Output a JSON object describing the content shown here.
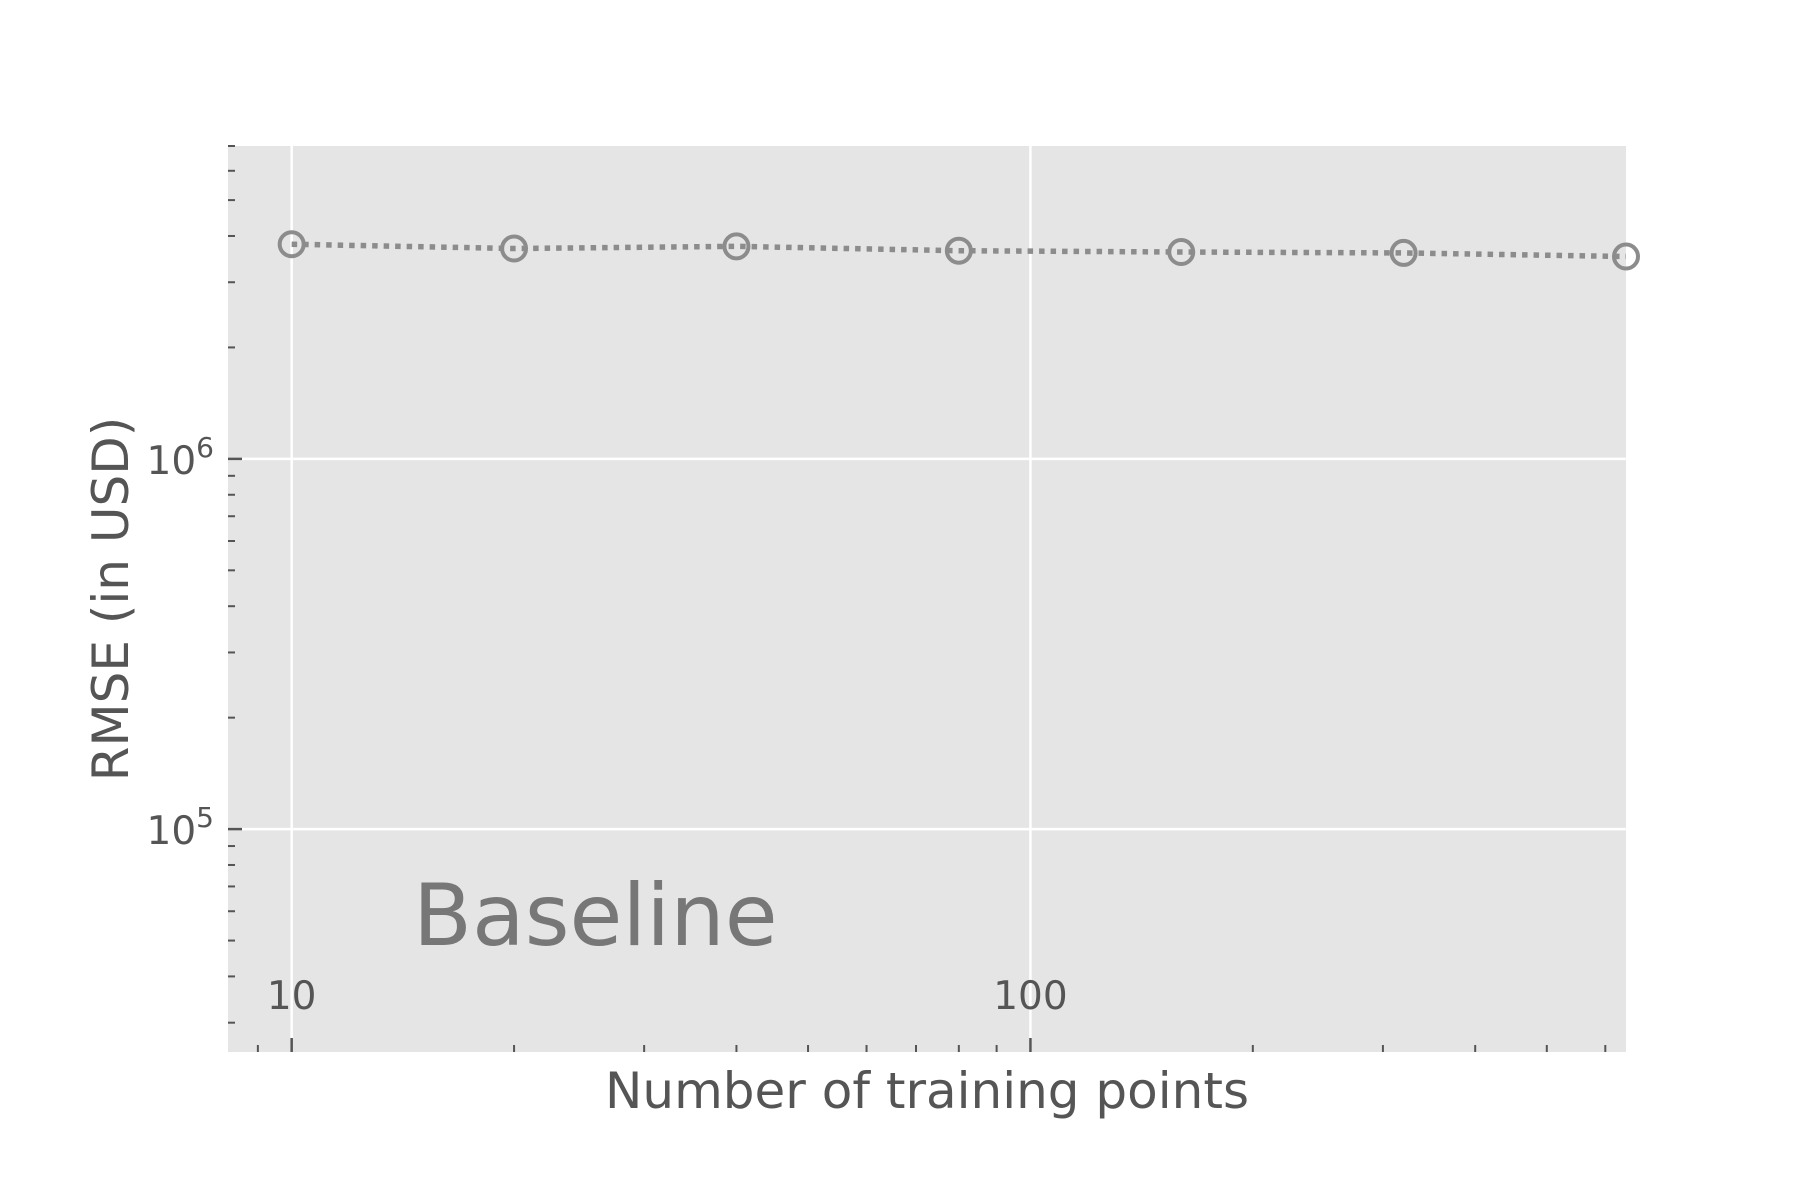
{
  "chart_data": {
    "type": "line",
    "title": "",
    "xlabel": "Number of training points",
    "ylabel": "RMSE (in USD)",
    "x_scale": "log",
    "y_scale": "log",
    "xlim": [
      8.2,
      640
    ],
    "ylim": [
      25000,
      7000000
    ],
    "x_ticks": [
      {
        "value": 10,
        "label": "10"
      },
      {
        "value": 100,
        "label": "100"
      }
    ],
    "y_ticks": [
      {
        "value": 100000,
        "base": "10",
        "exp": "5"
      },
      {
        "value": 1000000,
        "base": "10",
        "exp": "6"
      }
    ],
    "grid": true,
    "legend": "none",
    "annotation": "Baseline",
    "series": [
      {
        "x": [
          10,
          20,
          40,
          80,
          160,
          320,
          640
        ],
        "y": [
          3800000,
          3700000,
          3750000,
          3650000,
          3620000,
          3600000,
          3520000
        ],
        "line_style": "dotted",
        "marker": "open-circle",
        "color": "#8c8c8c"
      }
    ]
  },
  "colors": {
    "plot_background": "#e5e5e5",
    "grid": "#ffffff",
    "text": "#555555",
    "annotation": "#777777",
    "series": "#8c8c8c"
  }
}
